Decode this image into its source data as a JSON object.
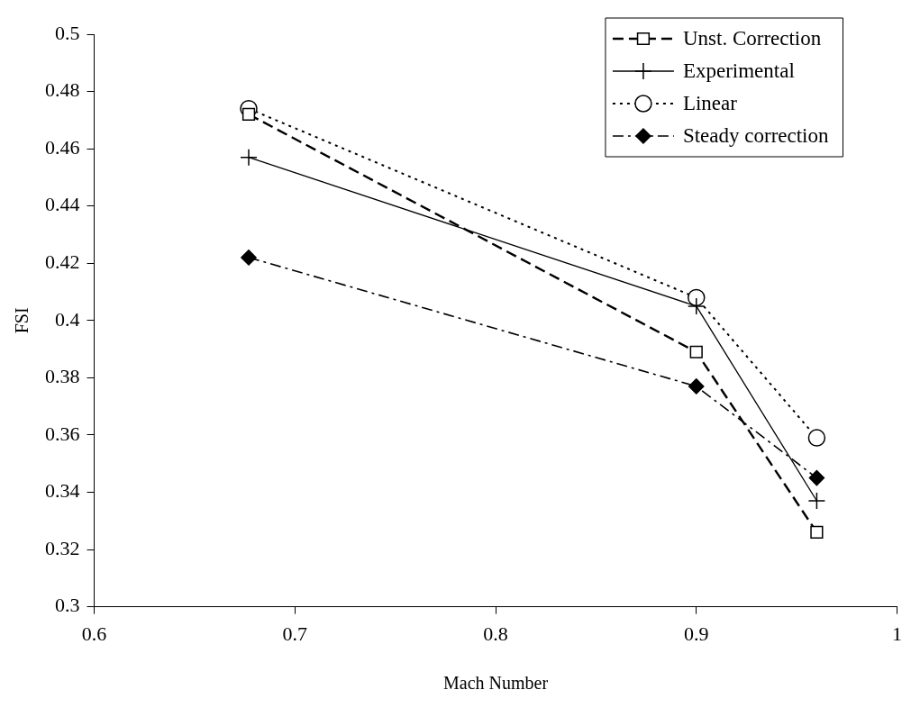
{
  "chart_data": {
    "type": "line",
    "xlabel": "Mach Number",
    "ylabel": "FSI",
    "x": [
      0.677,
      0.9,
      0.96
    ],
    "series": [
      {
        "name": "Unst. Correction",
        "color": "#000000",
        "values": [
          0.472,
          0.389,
          0.326
        ],
        "marker": "square",
        "line_style": "dashed"
      },
      {
        "name": "Experimental",
        "color": "#000000",
        "values": [
          0.457,
          0.405,
          0.337
        ],
        "marker": "cross",
        "line_style": "solid"
      },
      {
        "name": "Linear",
        "color": "#000000",
        "values": [
          0.474,
          0.408,
          0.359
        ],
        "marker": "circle",
        "line_style": "dotted"
      },
      {
        "name": "Steady correction",
        "color": "#000000",
        "values": [
          0.422,
          0.377,
          0.345
        ],
        "marker": "diamond",
        "line_style": "dashdot"
      }
    ],
    "xlim": [
      0.6,
      1
    ],
    "xticks": [
      0.6,
      0.7,
      0.8,
      0.9,
      1
    ],
    "ylim": [
      0.3,
      0.5
    ],
    "yticks": [
      0.3,
      0.32,
      0.34,
      0.36,
      0.38,
      0.4,
      0.42,
      0.44,
      0.46,
      0.48,
      0.5
    ],
    "grid": false,
    "legend": "top right"
  }
}
